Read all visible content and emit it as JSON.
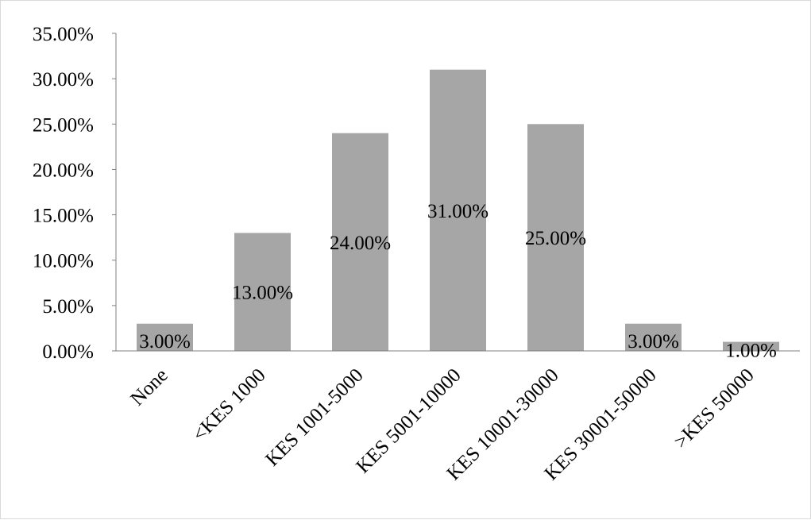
{
  "chart_data": {
    "type": "bar",
    "categories": [
      "None",
      "<KES 1000",
      "KES 1001-5000",
      "KES 5001-10000",
      "KES 10001-30000",
      "KES 30001-50000",
      ">KES 50000"
    ],
    "values": [
      3.0,
      13.0,
      24.0,
      31.0,
      25.0,
      3.0,
      1.0
    ],
    "data_labels": [
      "3.00%",
      "13.00%",
      "24.00%",
      "31.00%",
      "25.00%",
      "3.00%",
      "1.00%"
    ],
    "y_ticks": [
      0,
      5,
      10,
      15,
      20,
      25,
      30,
      35
    ],
    "y_tick_labels": [
      "0.00%",
      "5.00%",
      "10.00%",
      "15.00%",
      "20.00%",
      "25.00%",
      "30.00%",
      "35.00%"
    ],
    "ylim": [
      0,
      35
    ],
    "title": "",
    "xlabel": "",
    "ylabel": "",
    "grid": false,
    "legend": "none",
    "colors": {
      "bar": "#a6a6a6",
      "axis": "#808080",
      "text": "#000000"
    }
  }
}
